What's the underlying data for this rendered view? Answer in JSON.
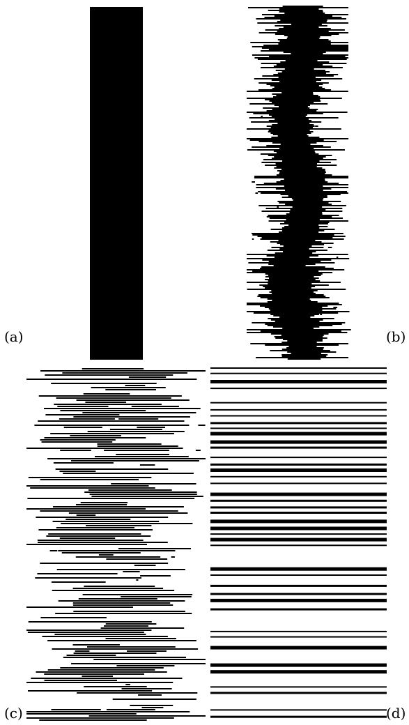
{
  "figure": {
    "panels": [
      {
        "id": "a",
        "label": "(a)"
      },
      {
        "id": "b",
        "label": "(b)"
      },
      {
        "id": "c",
        "label": "(c)"
      },
      {
        "id": "d",
        "label": "(d)"
      }
    ]
  },
  "colors": {
    "ink": "#000000",
    "background": "#ffffff"
  }
}
